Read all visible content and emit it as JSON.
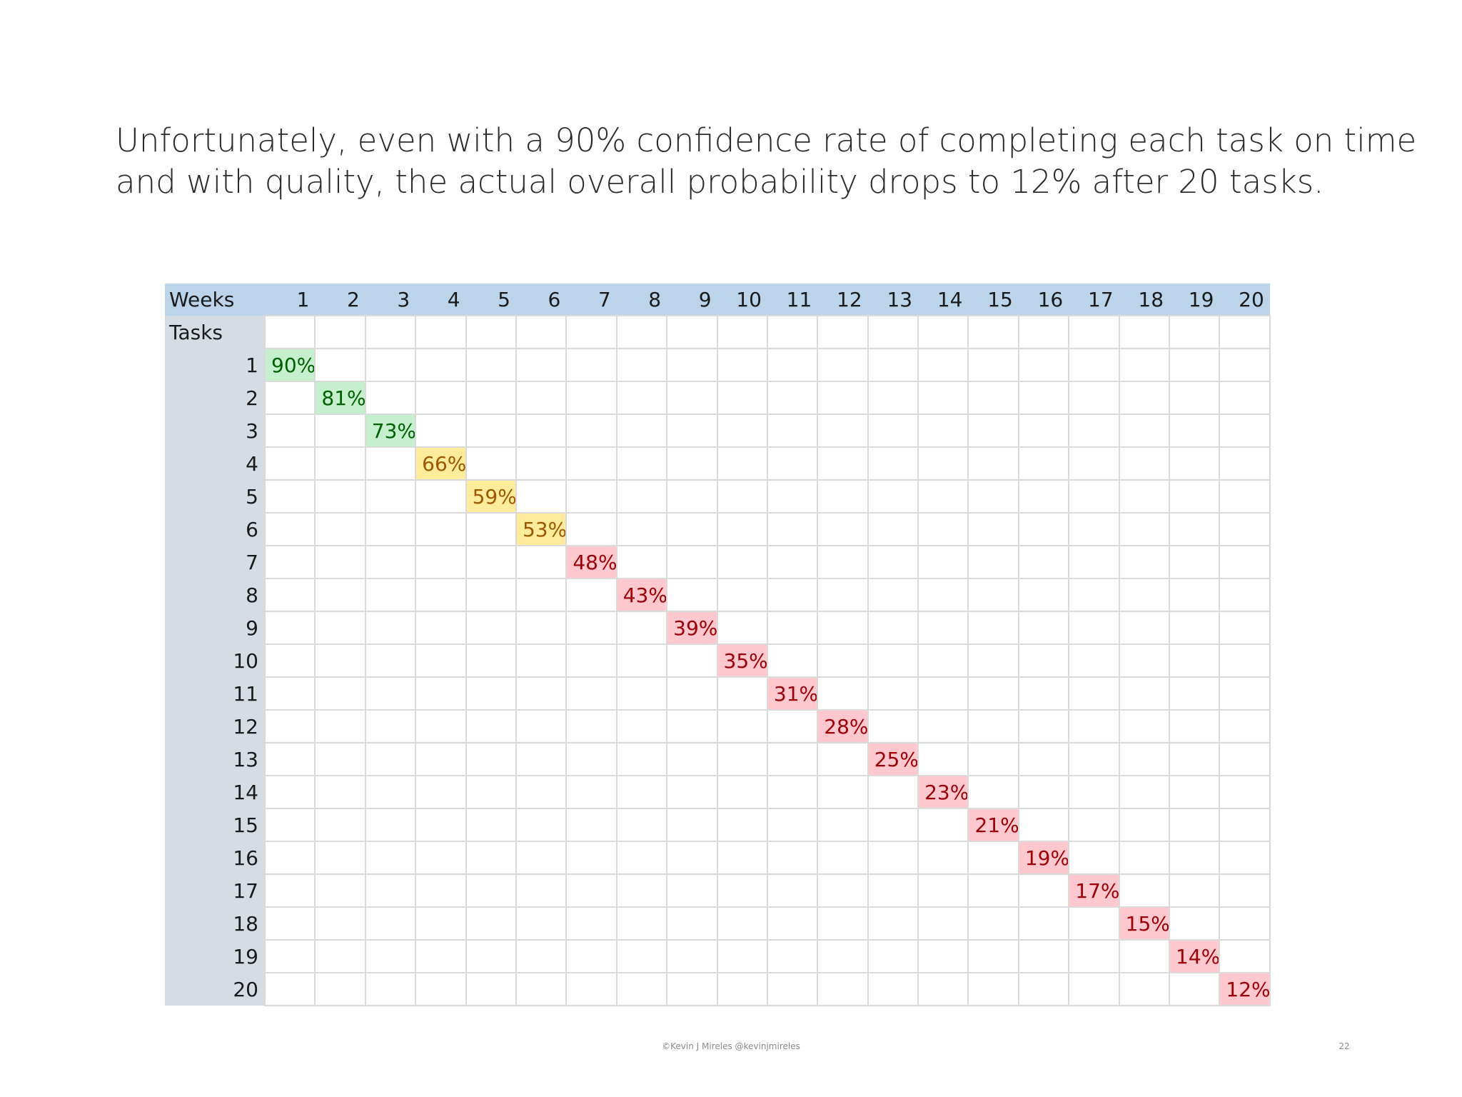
{
  "slide": {
    "headline_line1": "Unfortunately, even with a 90% confidence rate of completing each task on time",
    "headline_line2": "and with quality, the actual overall probability drops to 12% after 20 tasks.",
    "footer_credit": "©Kevin J Mireles @kevinjmireles",
    "page_number": "22"
  },
  "table": {
    "weeks_header": "Weeks",
    "tasks_header": "Tasks",
    "weeks": [
      "1",
      "2",
      "3",
      "4",
      "5",
      "6",
      "7",
      "8",
      "9",
      "10",
      "11",
      "12",
      "13",
      "14",
      "15",
      "16",
      "17",
      "18",
      "19",
      "20"
    ],
    "rows": [
      {
        "task": "1",
        "value": "90%",
        "status": "green"
      },
      {
        "task": "2",
        "value": "81%",
        "status": "green"
      },
      {
        "task": "3",
        "value": "73%",
        "status": "green"
      },
      {
        "task": "4",
        "value": "66%",
        "status": "yellow"
      },
      {
        "task": "5",
        "value": "59%",
        "status": "yellow"
      },
      {
        "task": "6",
        "value": "53%",
        "status": "yellow"
      },
      {
        "task": "7",
        "value": "48%",
        "status": "red"
      },
      {
        "task": "8",
        "value": "43%",
        "status": "red"
      },
      {
        "task": "9",
        "value": "39%",
        "status": "red"
      },
      {
        "task": "10",
        "value": "35%",
        "status": "red"
      },
      {
        "task": "11",
        "value": "31%",
        "status": "red"
      },
      {
        "task": "12",
        "value": "28%",
        "status": "red"
      },
      {
        "task": "13",
        "value": "25%",
        "status": "red"
      },
      {
        "task": "14",
        "value": "23%",
        "status": "red"
      },
      {
        "task": "15",
        "value": "21%",
        "status": "red"
      },
      {
        "task": "16",
        "value": "19%",
        "status": "red"
      },
      {
        "task": "17",
        "value": "17%",
        "status": "red"
      },
      {
        "task": "18",
        "value": "15%",
        "status": "red"
      },
      {
        "task": "19",
        "value": "14%",
        "status": "red"
      },
      {
        "task": "20",
        "value": "12%",
        "status": "red"
      }
    ]
  },
  "colors": {
    "header_bg": "#bcd4ea",
    "row_label_bg": "#d5dce4",
    "green_fill": "#c6efce",
    "green_text": "#006100",
    "yellow_fill": "#ffeb9c",
    "yellow_text": "#9c5700",
    "red_fill": "#ffc7ce",
    "red_text": "#9c0006"
  }
}
